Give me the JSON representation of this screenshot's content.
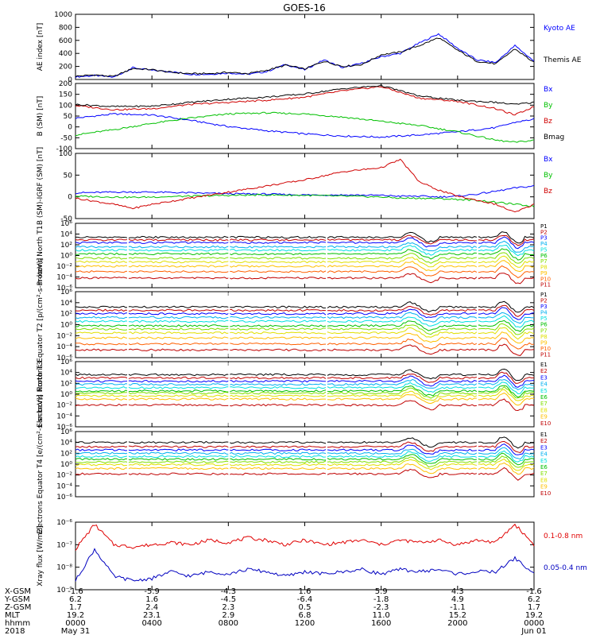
{
  "title": "GOES-16",
  "colors": {
    "p": [
      "#000000",
      "#c00000",
      "#0000ff",
      "#00b0f0",
      "#00e0e0",
      "#00c000",
      "#80e000",
      "#e0e000",
      "#ffc000",
      "#ff6000",
      "#c00000"
    ],
    "e": [
      "#000000",
      "#c00000",
      "#0000ff",
      "#00b0f0",
      "#00e0e0",
      "#00c000",
      "#80e000",
      "#e0e000",
      "#ffc000",
      "#c00000"
    ]
  },
  "footer": {
    "row_labels": [
      "X-GSM",
      "Y-GSM",
      "Z-GSM",
      "MLT",
      "hhmm",
      "2018"
    ],
    "columns": [
      {
        "values": [
          "-1.6",
          "6.2",
          "1.7",
          "19.2",
          "0000",
          "May 31"
        ]
      },
      {
        "values": [
          "-5.9",
          "1.6",
          "2.4",
          "23.1",
          "0400",
          ""
        ]
      },
      {
        "values": [
          "-4.3",
          "-4.5",
          "2.3",
          "2.9",
          "0800",
          ""
        ]
      },
      {
        "values": [
          "1.6",
          "-6.4",
          "0.5",
          "6.8",
          "1200",
          ""
        ]
      },
      {
        "values": [
          "5.9",
          "-1.8",
          "-2.3",
          "11.0",
          "1600",
          ""
        ]
      },
      {
        "values": [
          "4.3",
          "4.9",
          "-1.1",
          "15.2",
          "2000",
          ""
        ]
      },
      {
        "values": [
          "-1.6",
          "6.2",
          "1.7",
          "19.2",
          "0000",
          "Jun 01"
        ]
      }
    ]
  },
  "chart_data": [
    {
      "type": "line",
      "ylabel": "AE index [nT]",
      "ylim": [
        0,
        1000
      ],
      "yticks": [
        "0",
        "200",
        "400",
        "600",
        "800",
        "1000"
      ],
      "x": [
        0,
        1,
        2,
        3,
        4,
        5,
        6,
        7,
        8,
        9,
        10,
        11,
        12,
        13,
        14,
        15,
        16,
        17,
        18,
        19,
        20,
        21,
        22,
        23,
        24
      ],
      "series": [
        {
          "name": "Kyoto AE",
          "color": "#0000ff",
          "values": [
            40,
            60,
            35,
            180,
            140,
            120,
            80,
            80,
            100,
            80,
            120,
            230,
            150,
            300,
            180,
            250,
            350,
            400,
            560,
            700,
            480,
            300,
            260,
            520,
            280
          ]
        },
        {
          "name": "Themis AE",
          "color": "#000000",
          "values": [
            50,
            70,
            45,
            170,
            150,
            110,
            90,
            90,
            110,
            90,
            140,
            220,
            160,
            280,
            200,
            230,
            380,
            420,
            520,
            640,
            450,
            280,
            240,
            470,
            260
          ]
        }
      ]
    },
    {
      "type": "line",
      "ylabel": "B (SM) [nT]",
      "ylim": [
        -110,
        200
      ],
      "yticks": [
        "-100",
        "-50",
        "0",
        "50",
        "100",
        "150",
        "200"
      ],
      "x": [
        0,
        2,
        4,
        6,
        8,
        10,
        12,
        14,
        16,
        18,
        20,
        22,
        23,
        24
      ],
      "series": [
        {
          "name": "Bx",
          "color": "#0000ff",
          "values": [
            35,
            55,
            50,
            25,
            -5,
            -25,
            -40,
            -50,
            -55,
            -45,
            -30,
            -10,
            15,
            30
          ]
        },
        {
          "name": "By",
          "color": "#00c000",
          "values": [
            -45,
            -20,
            10,
            35,
            55,
            60,
            55,
            40,
            20,
            0,
            -30,
            -70,
            -80,
            -70
          ]
        },
        {
          "name": "Bz",
          "color": "#d00000",
          "values": [
            95,
            75,
            80,
            100,
            110,
            120,
            135,
            165,
            185,
            130,
            115,
            80,
            50,
            90
          ]
        },
        {
          "name": "Bmag",
          "color": "#000000",
          "values": [
            100,
            90,
            92,
            110,
            125,
            135,
            150,
            175,
            190,
            140,
            120,
            110,
            100,
            110
          ]
        }
      ]
    },
    {
      "type": "line",
      "ylabel": "B (SM)-IGRF (SM) [nT]",
      "ylim": [
        -55,
        105
      ],
      "yticks": [
        "-50",
        "0",
        "50",
        "100"
      ],
      "x": [
        0,
        2,
        3,
        4,
        6,
        8,
        10,
        12,
        14,
        16,
        17,
        18,
        19,
        20,
        21,
        22,
        23,
        24
      ],
      "series": [
        {
          "name": "Bx",
          "color": "#0000ff",
          "values": [
            8,
            10,
            10,
            10,
            8,
            6,
            5,
            3,
            3,
            2,
            0,
            0,
            -2,
            0,
            5,
            12,
            20,
            25
          ]
        },
        {
          "name": "By",
          "color": "#00c000",
          "values": [
            0,
            -2,
            -3,
            -2,
            0,
            2,
            3,
            2,
            0,
            -2,
            -5,
            -5,
            -6,
            -8,
            -10,
            -15,
            -20,
            -25
          ]
        },
        {
          "name": "Bz",
          "color": "#d00000",
          "values": [
            -5,
            -20,
            -30,
            -20,
            -5,
            10,
            25,
            40,
            60,
            70,
            90,
            35,
            15,
            0,
            -10,
            -20,
            -40,
            -20
          ]
        }
      ]
    },
    {
      "type": "line",
      "log": true,
      "ylabel": "Protons North T1",
      "ylim": [
        -6,
        6
      ],
      "yticks": [
        "10⁻⁶",
        "10⁻⁴",
        "10⁻²",
        "10⁰",
        "10²",
        "10⁴",
        "10⁶"
      ],
      "legend": [
        "P1",
        "P2",
        "P3",
        "P4",
        "P5",
        "P6",
        "P7",
        "P8",
        "P9",
        "P10",
        "P11"
      ],
      "levels": [
        3.4,
        2.9,
        2.4,
        1.6,
        1.0,
        0.3,
        -0.5,
        -1.2,
        -2.0,
        -3.0,
        -4.2
      ]
    },
    {
      "type": "line",
      "log": true,
      "ylabel": "Protons Equator T2 [p/(cm²-s-sr-keV)]",
      "ylim": [
        -6,
        6
      ],
      "yticks": [
        "10⁻⁶",
        "10⁻⁴",
        "10⁻²",
        "10⁰",
        "10²",
        "10⁴",
        "10⁶"
      ],
      "legend": [
        "P1",
        "P2",
        "P3",
        "P4",
        "P5",
        "P6",
        "P7",
        "P8",
        "P9",
        "P10",
        "P11"
      ],
      "levels": [
        3.2,
        2.6,
        2.0,
        1.3,
        0.6,
        -0.2,
        -0.8,
        -1.5,
        -2.4,
        -3.5,
        -4.6
      ]
    },
    {
      "type": "line",
      "log": true,
      "ylabel": "Electrons North T3",
      "ylim": [
        -6,
        6
      ],
      "yticks": [
        "10⁻⁶",
        "10⁻⁴",
        "10⁻²",
        "10⁰",
        "10²",
        "10⁴",
        "10⁶"
      ],
      "legend": [
        "E1",
        "E2",
        "E3",
        "E4",
        "E5",
        "E6",
        "E7",
        "E8",
        "E9",
        "E10"
      ],
      "levels": [
        3.6,
        3.0,
        2.4,
        1.8,
        1.2,
        0.6,
        0.2,
        -0.3,
        -0.9,
        -2.0
      ]
    },
    {
      "type": "line",
      "log": true,
      "ylabel": "Electrons Equator T4 [e/(cm²-s-sr-keV)]",
      "ylim": [
        -6,
        6
      ],
      "yticks": [
        "10⁻⁶",
        "10⁻⁴",
        "10⁻²",
        "10⁰",
        "10²",
        "10⁴",
        "10⁶"
      ],
      "legend": [
        "E1",
        "E2",
        "E3",
        "E4",
        "E5",
        "E6",
        "E7",
        "E8",
        "E9",
        "E10"
      ],
      "levels": [
        4.0,
        3.2,
        2.6,
        2.0,
        1.4,
        0.9,
        0.4,
        -0.1,
        -0.8,
        -1.8
      ]
    },
    {
      "type": "line",
      "log": true,
      "ylabel": "Xray flux [W/m2]",
      "ylim": [
        -9,
        -6
      ],
      "yticks": [
        "10⁻⁹",
        "10⁻⁸",
        "10⁻⁷",
        "10⁻⁶"
      ],
      "x": [
        0,
        1,
        2,
        3,
        4,
        5,
        6,
        7,
        8,
        9,
        10,
        11,
        12,
        13,
        14,
        15,
        16,
        17,
        18,
        19,
        20,
        21,
        22,
        23,
        24
      ],
      "series": [
        {
          "name": "0.1-0.8 nm",
          "color": "#e00000",
          "values": [
            -7.2,
            -6.1,
            -7.0,
            -7.1,
            -7.0,
            -6.9,
            -7.0,
            -6.8,
            -6.9,
            -6.7,
            -6.8,
            -7.0,
            -6.8,
            -7.0,
            -6.9,
            -6.8,
            -7.0,
            -6.8,
            -6.9,
            -6.8,
            -7.0,
            -6.8,
            -6.9,
            -6.1,
            -7.0
          ]
        },
        {
          "name": "0.05-0.4 nm",
          "color": "#0000c0",
          "values": [
            -8.6,
            -7.2,
            -8.4,
            -8.6,
            -8.5,
            -8.2,
            -8.4,
            -8.2,
            -8.3,
            -8.1,
            -8.2,
            -8.4,
            -8.2,
            -8.3,
            -8.2,
            -8.1,
            -8.3,
            -8.1,
            -8.2,
            -8.1,
            -8.3,
            -8.2,
            -8.2,
            -7.6,
            -8.3
          ]
        }
      ]
    }
  ]
}
